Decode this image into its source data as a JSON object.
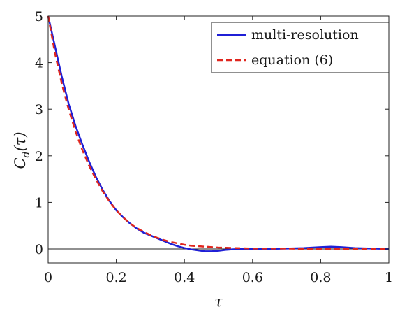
{
  "chart_data": {
    "type": "line",
    "title": "",
    "xlabel": "τ",
    "ylabel": "C_d(τ)",
    "ylabel_main": "C",
    "ylabel_sub": "d",
    "ylabel_rest": "(τ)",
    "xlim": [
      0,
      1
    ],
    "ylim": [
      -0.3,
      5
    ],
    "xticks": [
      0,
      0.2,
      0.4,
      0.6,
      0.8,
      1
    ],
    "xtick_labels": [
      "0",
      "0.2",
      "0.4",
      "0.6",
      "0.8",
      "1"
    ],
    "yticks": [
      0,
      1,
      2,
      3,
      4,
      5
    ],
    "ytick_labels": [
      "0",
      "1",
      "2",
      "3",
      "4",
      "5"
    ],
    "grid": false,
    "legend_position": "top-right",
    "zero_line": true,
    "series": [
      {
        "name": "multi-resolution",
        "style": "solid",
        "color": "#1f1fd6",
        "x": [
          0,
          0.02,
          0.04,
          0.06,
          0.08,
          0.1,
          0.12,
          0.14,
          0.16,
          0.18,
          0.2,
          0.22,
          0.24,
          0.26,
          0.28,
          0.3,
          0.32,
          0.34,
          0.36,
          0.38,
          0.4,
          0.42,
          0.44,
          0.46,
          0.48,
          0.5,
          0.52,
          0.54,
          0.56,
          0.58,
          0.6,
          0.65,
          0.7,
          0.75,
          0.8,
          0.83,
          0.86,
          0.9,
          0.95,
          1.0
        ],
        "y": [
          5.0,
          4.35,
          3.7,
          3.12,
          2.65,
          2.25,
          1.88,
          1.55,
          1.27,
          1.03,
          0.83,
          0.68,
          0.55,
          0.44,
          0.35,
          0.29,
          0.23,
          0.17,
          0.11,
          0.06,
          0.02,
          -0.01,
          -0.03,
          -0.05,
          -0.05,
          -0.04,
          -0.02,
          -0.01,
          0.0,
          0.0,
          0.0,
          0.0,
          0.01,
          0.02,
          0.04,
          0.05,
          0.04,
          0.02,
          0.01,
          0.0
        ]
      },
      {
        "name": "equation (6)",
        "style": "dashed",
        "color": "#e0261e",
        "x": [
          0,
          0.02,
          0.04,
          0.06,
          0.08,
          0.1,
          0.12,
          0.14,
          0.16,
          0.18,
          0.2,
          0.22,
          0.24,
          0.26,
          0.28,
          0.3,
          0.32,
          0.34,
          0.36,
          0.38,
          0.4,
          0.42,
          0.44,
          0.46,
          0.48,
          0.5,
          0.55,
          0.6,
          0.65,
          0.7,
          0.75,
          0.8,
          0.85,
          0.9,
          0.95,
          1.0
        ],
        "y": [
          5.0,
          4.2,
          3.55,
          3.0,
          2.53,
          2.13,
          1.79,
          1.5,
          1.24,
          1.02,
          0.83,
          0.68,
          0.55,
          0.45,
          0.37,
          0.3,
          0.24,
          0.19,
          0.15,
          0.12,
          0.09,
          0.07,
          0.06,
          0.05,
          0.04,
          0.03,
          0.02,
          0.01,
          0.01,
          0.01,
          0.0,
          0.0,
          0.0,
          0.0,
          0.0,
          0.0
        ]
      }
    ]
  }
}
